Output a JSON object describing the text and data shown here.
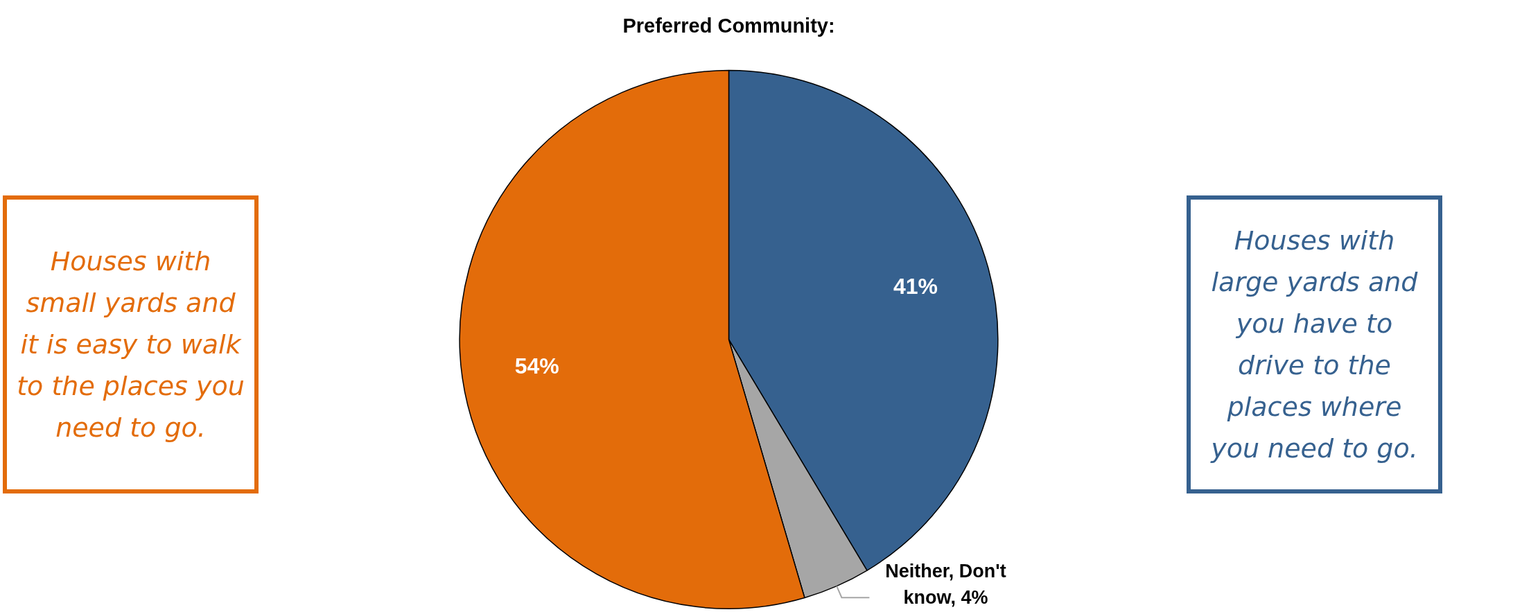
{
  "chart_data": {
    "type": "pie",
    "title": "Preferred Community:",
    "categories": [
      "Houses with large yards and you have to drive to the places where you need to go.",
      "Neither, Don't know",
      "Houses with small yards and it is easy to walk to the places you need to go."
    ],
    "values": [
      41,
      4,
      54
    ],
    "colors": [
      "#36618f",
      "#a6a6a6",
      "#e36c0a"
    ],
    "value_labels": [
      "41%",
      "4%",
      "54%"
    ]
  }
}
